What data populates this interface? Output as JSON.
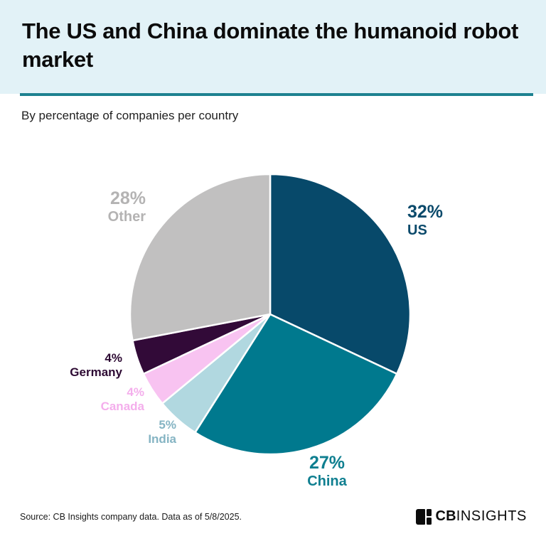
{
  "header": {
    "title": "The US and China dominate the humanoid robot market",
    "subtitle": "By percentage of companies per country"
  },
  "chart_data": {
    "type": "pie",
    "title": "The US and China dominate the humanoid robot market",
    "subtitle": "By percentage of companies per country",
    "unit": "%",
    "start_angle_deg": -90,
    "direction": "clockwise",
    "slices": [
      {
        "label": "US",
        "value": 32,
        "value_label": "32%",
        "color": "#07496a",
        "label_color": "#0b4a6b"
      },
      {
        "label": "China",
        "value": 27,
        "value_label": "27%",
        "color": "#00798e",
        "label_color": "#0f7f90"
      },
      {
        "label": "India",
        "value": 5,
        "value_label": "5%",
        "color": "#b1d8e0",
        "label_color": "#85b4c3"
      },
      {
        "label": "Canada",
        "value": 4,
        "value_label": "4%",
        "color": "#f8c3f1",
        "label_color": "#f4aeec"
      },
      {
        "label": "Germany",
        "value": 4,
        "value_label": "4%",
        "color": "#320a38",
        "label_color": "#2d0a33"
      },
      {
        "label": "Other",
        "value": 28,
        "value_label": "28%",
        "color": "#c1c0c0",
        "label_color": "#b4b3b3"
      }
    ]
  },
  "colors": {
    "header_background": "#e2f2f7",
    "divider": "#1d8190",
    "page_background": "#ffffff",
    "title_text": "#0b0b0b"
  },
  "footer": {
    "source": "Source: CB Insights company data. Data as of 5/8/2025.",
    "logo_bold": "CB",
    "logo_light": "INSIGHTS"
  }
}
